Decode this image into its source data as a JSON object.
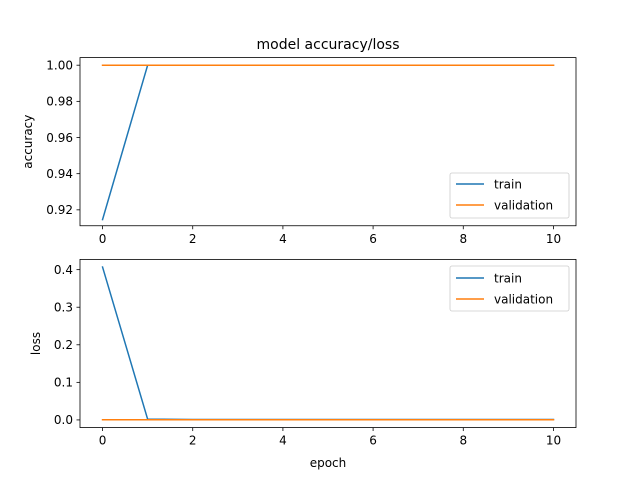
{
  "chart_data": [
    {
      "type": "line",
      "title": "model accuracy/loss",
      "xlabel": "",
      "ylabel": "accuracy",
      "xlim": [
        -0.5,
        10.5
      ],
      "ylim": [
        0.9112,
        1.0042
      ],
      "xticks": [
        0,
        2,
        4,
        6,
        8,
        10
      ],
      "xtick_labels": [
        "0",
        "2",
        "4",
        "6",
        "8",
        "10"
      ],
      "yticks": [
        0.92,
        0.94,
        0.96,
        0.98,
        1.0
      ],
      "ytick_labels": [
        "0.92",
        "0.94",
        "0.96",
        "0.98",
        "1.00"
      ],
      "legend_position": "lower-right",
      "grid": false,
      "x": [
        0,
        1,
        2,
        3,
        4,
        5,
        6,
        7,
        8,
        9,
        10
      ],
      "series": [
        {
          "name": "train",
          "color": "#1f77b4",
          "values": [
            0.9146,
            1.0,
            1.0,
            1.0,
            1.0,
            1.0,
            1.0,
            1.0,
            1.0,
            1.0,
            1.0
          ]
        },
        {
          "name": "validation",
          "color": "#ff7f0e",
          "values": [
            1.0,
            1.0,
            1.0,
            1.0,
            1.0,
            1.0,
            1.0,
            1.0,
            1.0,
            1.0,
            1.0
          ]
        }
      ]
    },
    {
      "type": "line",
      "title": "",
      "xlabel": "epoch",
      "ylabel": "loss",
      "xlim": [
        -0.5,
        10.5
      ],
      "ylim": [
        -0.0203,
        0.4273
      ],
      "xticks": [
        0,
        2,
        4,
        6,
        8,
        10
      ],
      "xtick_labels": [
        "0",
        "2",
        "4",
        "6",
        "8",
        "10"
      ],
      "yticks": [
        0.0,
        0.1,
        0.2,
        0.3,
        0.4
      ],
      "ytick_labels": [
        "0.0",
        "0.1",
        "0.2",
        "0.3",
        "0.4"
      ],
      "legend_position": "upper-right",
      "grid": false,
      "x": [
        0,
        1,
        2,
        3,
        4,
        5,
        6,
        7,
        8,
        9,
        10
      ],
      "series": [
        {
          "name": "train",
          "color": "#1f77b4",
          "values": [
            0.407,
            0.002,
            0.001,
            0.001,
            0.001,
            0.001,
            0.001,
            0.001,
            0.001,
            0.001,
            0.001
          ]
        },
        {
          "name": "validation",
          "color": "#ff7f0e",
          "values": [
            0.0005,
            0.0005,
            0.0005,
            0.0005,
            0.0005,
            0.0005,
            0.0005,
            0.0005,
            0.0005,
            0.0005,
            0.0005
          ]
        }
      ]
    }
  ]
}
